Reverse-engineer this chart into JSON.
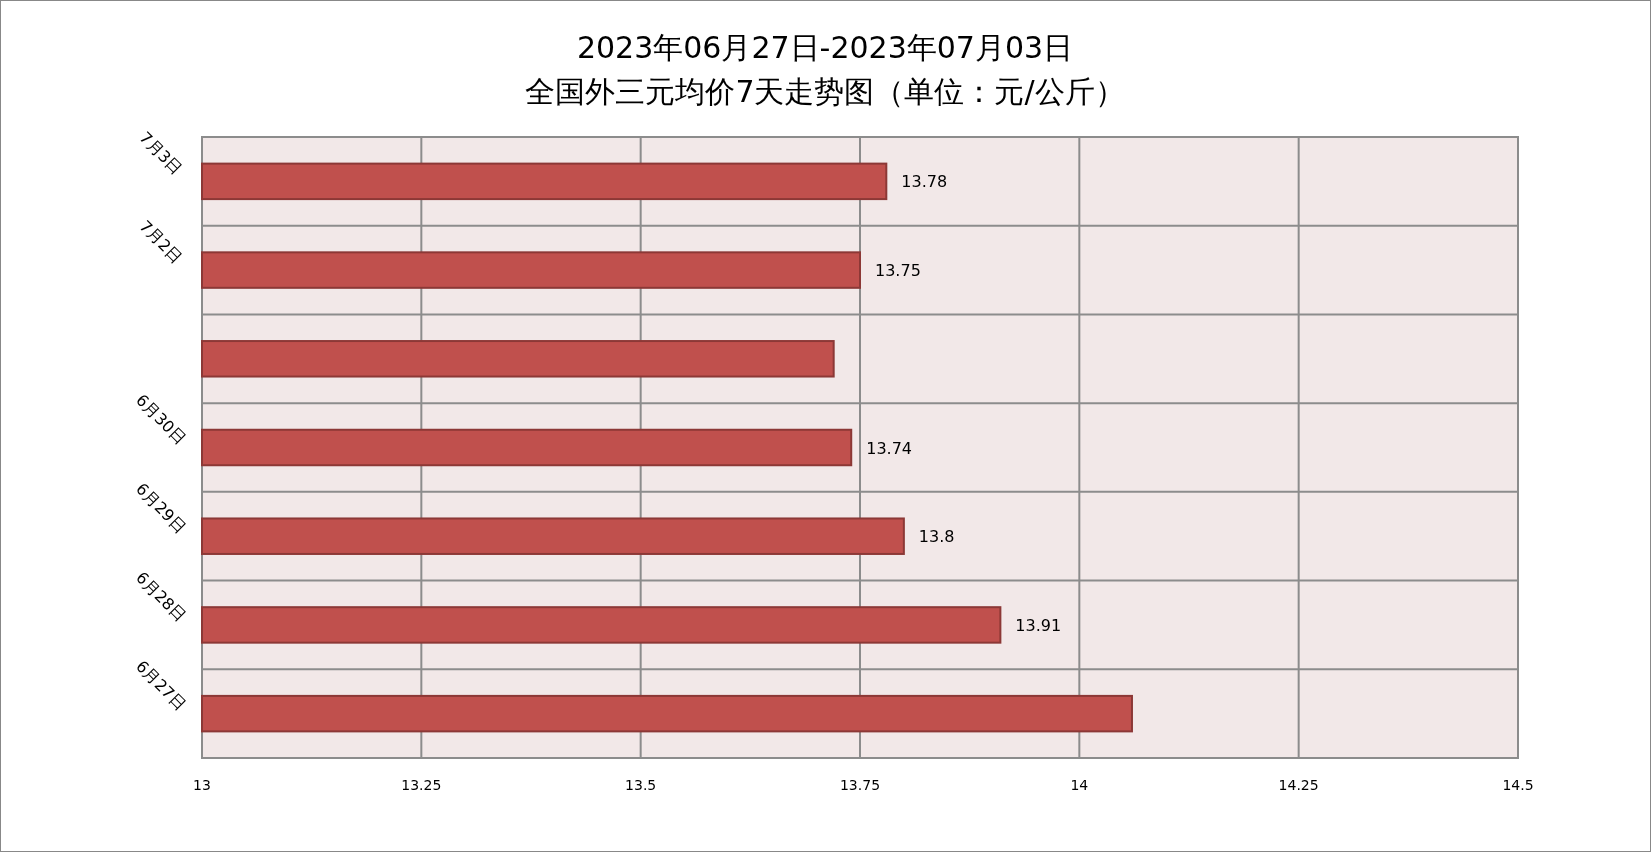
{
  "chart_data": {
    "type": "bar",
    "orientation": "horizontal",
    "title": "2023年06月27日-2023年07月03日",
    "subtitle": "全国外三元均价7天走势图（单位：元/公斤）",
    "categories": [
      "7月3日",
      "7月2日",
      null,
      "6月30日",
      "6月29日",
      "6月28日",
      "6月27日"
    ],
    "values": [
      13.78,
      13.75,
      13.72,
      13.74,
      13.8,
      13.91,
      14.06
    ],
    "value_labels": [
      "13.78",
      "13.75",
      null,
      "13.74",
      "13.8",
      "13.91",
      null
    ],
    "color": "#c0504d",
    "xlim": [
      13,
      14.5
    ],
    "xticks": [
      13,
      13.25,
      13.5,
      13.75,
      14,
      14.25,
      14.5
    ],
    "grid": true
  }
}
